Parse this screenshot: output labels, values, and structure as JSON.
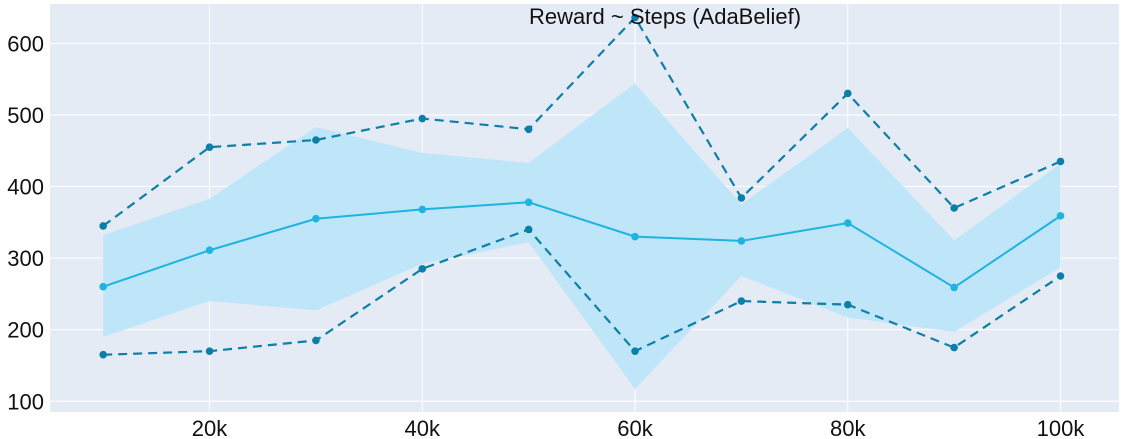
{
  "chart_data": {
    "type": "line",
    "title": "Reward ~ Steps (AdaBelief)",
    "xlabel": "",
    "ylabel": "",
    "x": [
      10000,
      20000,
      30000,
      40000,
      50000,
      60000,
      70000,
      80000,
      90000,
      100000
    ],
    "x_ticks": [
      20000,
      40000,
      60000,
      80000,
      100000
    ],
    "x_tick_labels": [
      "20k",
      "40k",
      "60k",
      "80k",
      "100k"
    ],
    "y_ticks": [
      100,
      200,
      300,
      400,
      500,
      600
    ],
    "y_tick_labels": [
      "100",
      "200",
      "300",
      "400",
      "500",
      "600"
    ],
    "xlim": [
      5000,
      105500
    ],
    "ylim": [
      85,
      655
    ],
    "grid": true,
    "series": [
      {
        "role": "mean",
        "style": "solid",
        "color": "#1fb3e0",
        "values": [
          260,
          311,
          355,
          368,
          378,
          330,
          324,
          349,
          259,
          359
        ]
      },
      {
        "role": "max",
        "style": "dashed",
        "color": "#0c7fa8",
        "values": [
          345,
          455,
          465,
          495,
          480,
          636,
          384,
          530,
          370,
          435
        ]
      },
      {
        "role": "min",
        "style": "dashed",
        "color": "#0c7fa8",
        "values": [
          165,
          170,
          185,
          285,
          340,
          170,
          240,
          235,
          175,
          275
        ]
      }
    ],
    "band": {
      "color": "#bfe6f8",
      "upper": [
        332,
        383,
        483,
        447,
        433,
        544,
        375,
        482,
        325,
        432
      ],
      "lower": [
        190,
        240,
        227,
        292,
        322,
        117,
        275,
        217,
        197,
        287
      ]
    },
    "colors": {
      "plot_bg": "#e5ebf5",
      "grid": "#ffffff"
    }
  }
}
